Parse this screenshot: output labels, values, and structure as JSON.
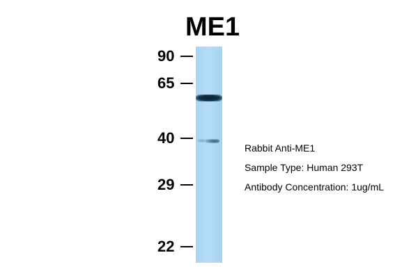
{
  "title": "ME1",
  "markers": [
    "90",
    "65",
    "40",
    "29",
    "22"
  ],
  "info": {
    "line1": "Rabbit Anti-ME1",
    "line2": "Sample Type: Human 293T",
    "line3": "Antibody Concentration: 1ug/mL"
  },
  "colors": {
    "lane": "#b0d8f4",
    "band": "#0b1c2c"
  }
}
